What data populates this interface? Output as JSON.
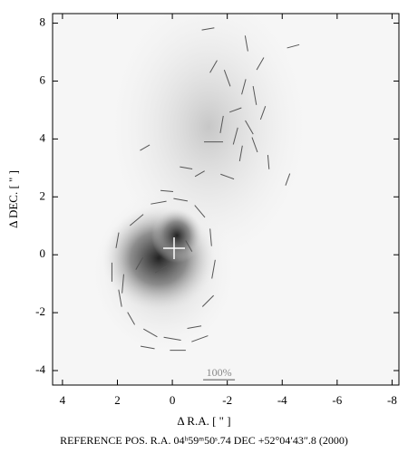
{
  "chart_data": {
    "type": "vector",
    "xlabel": "Δ R.A. [ \" ]",
    "ylabel": "Δ DEC. [ \" ]",
    "footer": "REFERENCE POS.   R.A. 04ʰ59ᵐ50ˢ.74   DEC   +52°04′43″.8   (2000)",
    "xlim": [
      4.36,
      -8.25
    ],
    "ylim": [
      -4.5,
      8.33
    ],
    "xticks": [
      4,
      2,
      0,
      -2,
      -4,
      -6,
      -8
    ],
    "yticks": [
      -4,
      -2,
      0,
      2,
      4,
      6,
      8
    ],
    "color": "#555555",
    "vectors": {
      "x": [
        2.0,
        2.2,
        1.9,
        1.5,
        0.8,
        0.0,
        -0.8,
        -1.3,
        -1.5,
        -1.4,
        -1.0,
        -0.3,
        0.5,
        1.3,
        1.8,
        0.9,
        -0.2,
        -1.0,
        0.2,
        1.2,
        -0.6,
        0.4,
        -1.5,
        -2.0,
        -2.6,
        -3.0,
        -2.3,
        -1.8,
        -2.8,
        -3.3,
        -1.5,
        -2.5,
        -3.5,
        -4.2,
        -1.0,
        -2.0,
        -1.3,
        -2.7,
        -3.2,
        -4.4,
        1.0,
        -0.5,
        -2.3,
        -3.0
      ],
      "y": [
        0.5,
        -0.6,
        -1.5,
        -2.2,
        -2.7,
        -2.9,
        -2.5,
        -1.6,
        -0.5,
        0.6,
        1.5,
        1.9,
        1.8,
        1.2,
        -1.0,
        -3.2,
        -3.3,
        -2.9,
        2.2,
        -0.3,
        0.3,
        -0.5,
        6.5,
        6.1,
        5.8,
        5.5,
        5.0,
        4.5,
        4.4,
        4.9,
        3.9,
        3.5,
        3.2,
        2.6,
        2.8,
        2.7,
        7.8,
        7.3,
        6.6,
        7.2,
        3.7,
        3.0,
        4.1,
        3.8
      ],
      "angle": [
        80,
        90,
        100,
        120,
        150,
        170,
        10,
        45,
        80,
        95,
        130,
        170,
        10,
        40,
        85,
        170,
        0,
        20,
        175,
        60,
        120,
        30,
        60,
        110,
        75,
        100,
        20,
        80,
        120,
        70,
        0,
        80,
        95,
        70,
        30,
        160,
        10,
        100,
        60,
        15,
        30,
        170,
        75,
        110
      ],
      "p": [
        50,
        60,
        55,
        45,
        50,
        55,
        45,
        50,
        60,
        55,
        50,
        45,
        50,
        55,
        60,
        45,
        50,
        55,
        40,
        45,
        40,
        45,
        45,
        55,
        50,
        60,
        40,
        55,
        50,
        45,
        60,
        50,
        45,
        40,
        35,
        45,
        40,
        50,
        45,
        40,
        35,
        40,
        55,
        50
      ]
    },
    "scale_bar": {
      "label": "100%",
      "value": 100,
      "x": -1.7,
      "y": -4.1
    }
  }
}
